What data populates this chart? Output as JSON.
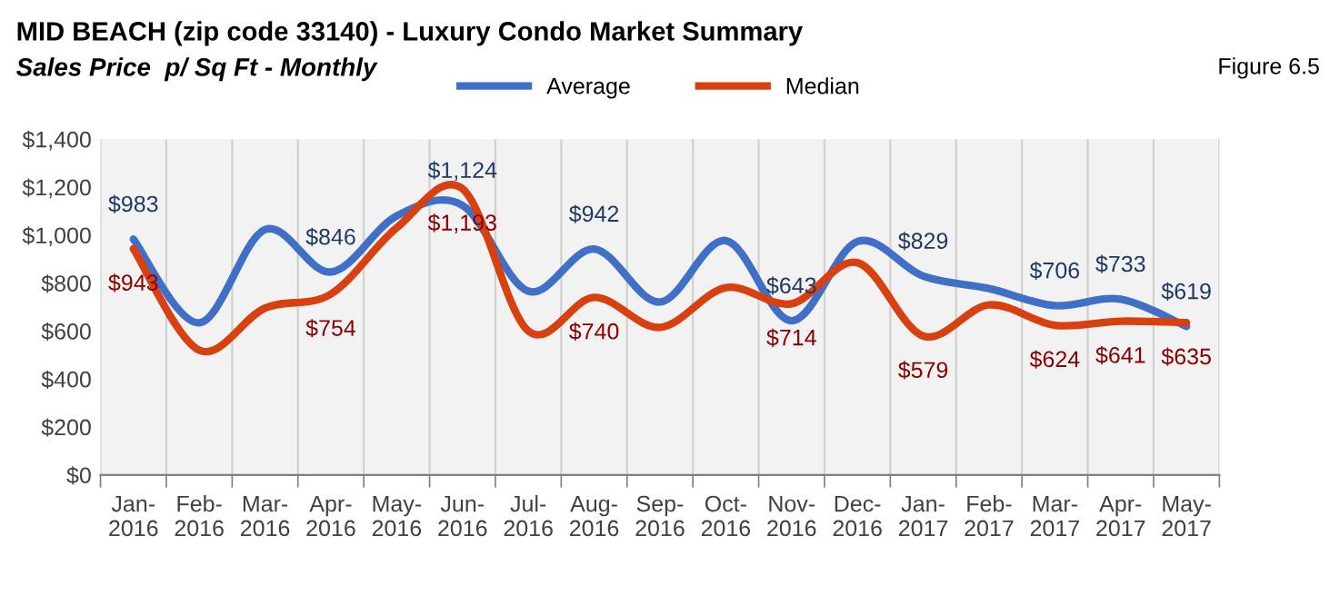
{
  "chart_data": {
    "type": "line",
    "title": "MID BEACH (zip code 33140) - Luxury Condo Market Summary",
    "subtitle": "Sales Price  p/ Sq Ft - Monthly",
    "annotations": [
      "Figure 6.5"
    ],
    "categories": [
      "Jan-\n2016",
      "Feb-\n2016",
      "Mar-\n2016",
      "Apr-\n2016",
      "May-\n2016",
      "Jun-\n2016",
      "Jul-\n2016",
      "Aug-\n2016",
      "Sep-\n2016",
      "Oct-\n2016",
      "Nov-\n2016",
      "Dec-\n2016",
      "Jan-\n2017",
      "Feb-\n2017",
      "Mar-\n2017",
      "Apr-\n2017",
      "May-\n2017"
    ],
    "series": [
      {
        "name": "Average",
        "color": "#3f6fc6",
        "values": [
          983,
          634,
          1023,
          846,
          1080,
          1124,
          766,
          942,
          721,
          977,
          643,
          973,
          829,
          777,
          706,
          733,
          619
        ],
        "value_labels": [
          "$983",
          null,
          null,
          "$846",
          null,
          "$1,124",
          null,
          "$942",
          null,
          null,
          "$643",
          null,
          "$829",
          null,
          "$706",
          "$733",
          "$619"
        ]
      },
      {
        "name": "Median",
        "color": "#d9400f",
        "values": [
          943,
          520,
          696,
          754,
          1030,
          1193,
          600,
          740,
          615,
          781,
          714,
          885,
          579,
          709,
          624,
          641,
          635
        ],
        "value_labels": [
          "$943",
          null,
          null,
          "$754",
          null,
          "$1,193",
          null,
          "$740",
          null,
          null,
          "$714",
          null,
          "$579",
          null,
          "$624",
          "$641",
          "$635"
        ]
      }
    ],
    "ylim": [
      0,
      1400
    ],
    "yticks": [
      {
        "value": 0,
        "label": "$0"
      },
      {
        "value": 200,
        "label": "$200"
      },
      {
        "value": 400,
        "label": "$400"
      },
      {
        "value": 600,
        "label": "$600"
      },
      {
        "value": 800,
        "label": "$800"
      },
      {
        "value": 1000,
        "label": "$1,000"
      },
      {
        "value": 1200,
        "label": "$1,200"
      },
      {
        "value": 1400,
        "label": "$1,400"
      }
    ],
    "grid": "x",
    "legend": "top",
    "marker": "none",
    "line_style": "solid"
  }
}
